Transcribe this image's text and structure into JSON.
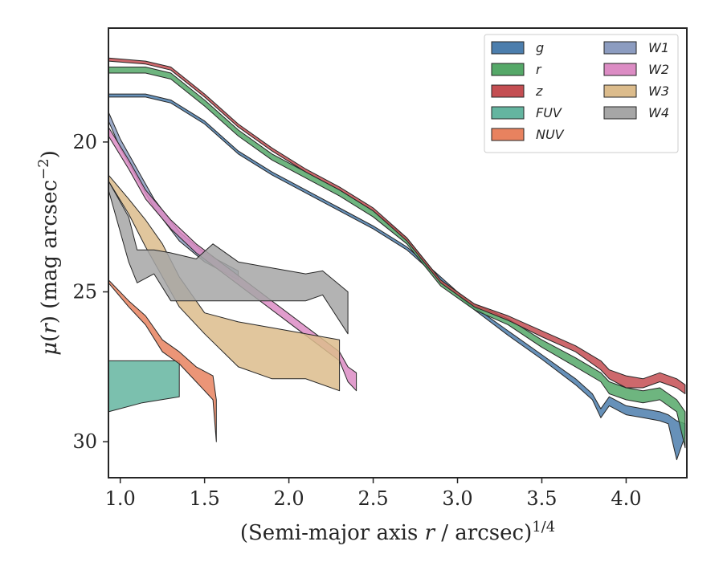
{
  "chart_data": {
    "type": "area",
    "xlabel": "(Semi-major axis r / arcsec)^1/4",
    "ylabel": "μ(r) (mag arcsec^−2)",
    "xlim": [
      0.93,
      4.36
    ],
    "ylim": [
      31.2,
      16.2
    ],
    "y_inverted": true,
    "grid": false,
    "legend": "top-right",
    "legend_columns": 2,
    "xticks": [
      1.0,
      1.5,
      2.0,
      2.5,
      3.0,
      3.5,
      4.0
    ],
    "yticks": [
      20,
      25,
      30
    ],
    "xtick_labels": [
      "1.0",
      "1.5",
      "2.0",
      "2.5",
      "3.0",
      "3.5",
      "4.0"
    ],
    "ytick_labels": [
      "20",
      "25",
      "30"
    ],
    "series": [
      {
        "name": "g",
        "color": "#4c7ead",
        "x": [
          0.93,
          1.15,
          1.3,
          1.5,
          1.7,
          1.9,
          2.1,
          2.3,
          2.5,
          2.7,
          2.9,
          3.1,
          3.3,
          3.5,
          3.7,
          3.8,
          3.85,
          3.9,
          4.0,
          4.1,
          4.2,
          4.25,
          4.3,
          4.35
        ],
        "low": [
          18.4,
          18.4,
          18.6,
          19.3,
          20.3,
          21.0,
          21.6,
          22.2,
          22.8,
          23.5,
          24.5,
          25.5,
          26.3,
          27.1,
          27.9,
          28.4,
          28.9,
          28.5,
          28.8,
          28.9,
          29.0,
          29.1,
          29.3,
          29.4
        ],
        "high": [
          18.5,
          18.5,
          18.7,
          19.4,
          20.4,
          21.1,
          21.7,
          22.3,
          22.9,
          23.6,
          24.6,
          25.6,
          26.45,
          27.25,
          28.1,
          28.6,
          29.2,
          28.8,
          29.1,
          29.2,
          29.3,
          29.4,
          30.6,
          29.8
        ]
      },
      {
        "name": "r",
        "color": "#55a868",
        "x": [
          0.93,
          1.15,
          1.3,
          1.5,
          1.7,
          1.9,
          2.1,
          2.3,
          2.5,
          2.7,
          2.9,
          3.1,
          3.3,
          3.5,
          3.7,
          3.85,
          3.9,
          4.0,
          4.1,
          4.2,
          4.3,
          4.35
        ],
        "low": [
          17.5,
          17.5,
          17.7,
          18.6,
          19.6,
          20.4,
          21.0,
          21.6,
          22.3,
          23.2,
          24.6,
          25.4,
          25.9,
          26.6,
          27.2,
          27.7,
          28.0,
          28.2,
          28.3,
          28.2,
          28.6,
          29.0
        ],
        "high": [
          17.7,
          17.7,
          17.9,
          18.8,
          19.8,
          20.6,
          21.2,
          21.8,
          22.5,
          23.4,
          24.8,
          25.6,
          26.1,
          26.85,
          27.5,
          28.0,
          28.4,
          28.6,
          28.7,
          28.6,
          29.0,
          30.2
        ]
      },
      {
        "name": "z",
        "color": "#c44e52",
        "x": [
          0.93,
          1.15,
          1.3,
          1.5,
          1.7,
          1.9,
          2.1,
          2.3,
          2.5,
          2.7,
          2.9,
          3.1,
          3.3,
          3.5,
          3.7,
          3.85,
          3.9,
          4.0,
          4.1,
          4.2,
          4.3,
          4.35
        ],
        "low": [
          17.2,
          17.3,
          17.5,
          18.4,
          19.4,
          20.2,
          20.9,
          21.5,
          22.2,
          23.2,
          24.6,
          25.4,
          25.8,
          26.3,
          26.8,
          27.3,
          27.6,
          27.8,
          27.9,
          27.7,
          27.9,
          28.1
        ],
        "high": [
          17.3,
          17.4,
          17.6,
          18.5,
          19.5,
          20.3,
          21.0,
          21.6,
          22.3,
          23.3,
          24.7,
          25.5,
          25.95,
          26.5,
          27.0,
          27.6,
          27.9,
          28.2,
          28.2,
          28.0,
          28.2,
          28.4
        ]
      },
      {
        "name": "FUV",
        "color": "#64b5a0",
        "x": [
          0.93,
          1.13,
          1.35
        ],
        "low": [
          27.3,
          27.3,
          27.3
        ],
        "high": [
          29.0,
          28.7,
          28.5
        ]
      },
      {
        "name": "NUV",
        "color": "#e8825f",
        "x": [
          0.93,
          1.05,
          1.15,
          1.25,
          1.35,
          1.45,
          1.55,
          1.57
        ],
        "low": [
          24.6,
          25.3,
          25.8,
          26.6,
          27.0,
          27.5,
          27.8,
          28.6
        ],
        "high": [
          24.7,
          25.5,
          26.1,
          27.0,
          27.4,
          28.0,
          28.6,
          30.0
        ]
      },
      {
        "name": "W1",
        "color": "#8c9cc0",
        "x": [
          0.93,
          1.0,
          1.1,
          1.2,
          1.35,
          1.5,
          1.7
        ],
        "low": [
          19.0,
          19.9,
          20.9,
          21.9,
          23.0,
          23.7,
          24.3
        ],
        "high": [
          19.3,
          20.2,
          21.2,
          22.2,
          23.3,
          24.0,
          24.6
        ]
      },
      {
        "name": "W2",
        "color": "#dc8cc4",
        "x": [
          0.93,
          1.05,
          1.15,
          1.3,
          1.45,
          2.3,
          2.35,
          2.4
        ],
        "low": [
          19.5,
          20.6,
          21.6,
          22.6,
          23.4,
          27.0,
          27.5,
          27.7
        ],
        "high": [
          19.8,
          20.9,
          21.9,
          22.9,
          23.7,
          27.3,
          28.0,
          28.3
        ]
      },
      {
        "name": "W3",
        "color": "#dcbc8c",
        "x": [
          0.93,
          1.05,
          1.15,
          1.25,
          1.35,
          1.5,
          1.7,
          1.9,
          2.1,
          2.3
        ],
        "low": [
          21.1,
          21.9,
          22.6,
          23.4,
          24.5,
          25.7,
          26.0,
          26.2,
          26.4,
          26.6
        ],
        "high": [
          21.3,
          22.4,
          23.5,
          24.5,
          25.5,
          26.4,
          27.5,
          27.9,
          27.9,
          28.3
        ]
      },
      {
        "name": "W4",
        "color": "#a6a6a6",
        "x": [
          0.93,
          1.05,
          1.1,
          1.2,
          1.3,
          1.45,
          1.55,
          1.7,
          1.9,
          2.1,
          2.2,
          2.35
        ],
        "low": [
          21.3,
          22.5,
          23.6,
          23.6,
          23.7,
          23.9,
          23.4,
          24.0,
          24.2,
          24.4,
          24.3,
          25.0
        ],
        "high": [
          21.6,
          24.0,
          24.7,
          24.4,
          25.3,
          25.3,
          25.3,
          25.3,
          25.3,
          25.3,
          25.1,
          26.4
        ]
      }
    ]
  }
}
